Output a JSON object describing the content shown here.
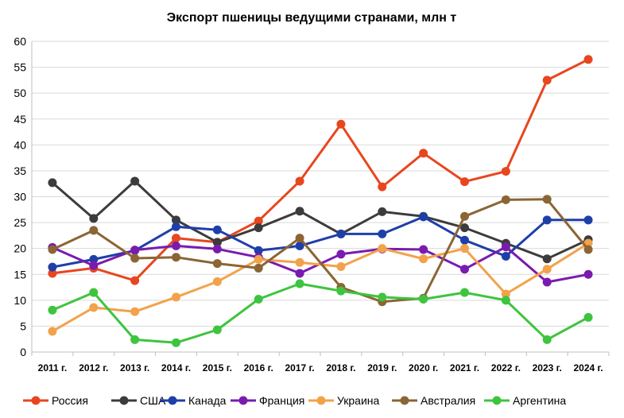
{
  "chart_data": {
    "type": "line",
    "title": "Экспорт пшеницы ведущими странами, млн т",
    "xlabel": "",
    "ylabel": "",
    "ylim": [
      0,
      60
    ],
    "yticks": [
      0,
      5,
      10,
      15,
      20,
      25,
      30,
      35,
      40,
      45,
      50,
      55,
      60
    ],
    "grid": true,
    "legend_position": "bottom",
    "categories": [
      "2011 г.",
      "2012 г.",
      "2013 г.",
      "2014 г.",
      "2015 г.",
      "2016 г.",
      "2017 г.",
      "2018 г.",
      "2019 г.",
      "2020 г.",
      "2021 г.",
      "2022 г.",
      "2023 г.",
      "2024 г."
    ],
    "series": [
      {
        "name": "Россия",
        "color": "#E8461E",
        "values": [
          15.2,
          16.2,
          13.8,
          22.0,
          21.2,
          25.3,
          33.0,
          44.0,
          31.9,
          38.4,
          32.9,
          34.9,
          52.5,
          56.5
        ]
      },
      {
        "name": "США",
        "color": "#3C3C3C",
        "values": [
          32.7,
          25.8,
          33.0,
          25.5,
          21.2,
          24.0,
          27.2,
          22.8,
          27.1,
          26.2,
          24.0,
          21.0,
          18.0,
          21.7
        ]
      },
      {
        "name": "Канада",
        "color": "#1F3FA8",
        "values": [
          16.4,
          17.9,
          19.6,
          24.2,
          23.6,
          19.6,
          20.5,
          22.8,
          22.8,
          26.1,
          21.6,
          18.5,
          25.5,
          25.5
        ]
      },
      {
        "name": "Франция",
        "color": "#7A1BAF",
        "values": [
          20.2,
          16.7,
          19.7,
          20.5,
          19.9,
          18.3,
          15.2,
          18.9,
          19.9,
          19.8,
          16.0,
          20.3,
          13.5,
          15.0
        ]
      },
      {
        "name": "Украина",
        "color": "#F2A24A",
        "values": [
          4.0,
          8.6,
          7.8,
          10.6,
          13.6,
          17.9,
          17.3,
          16.5,
          20.0,
          18.0,
          20.0,
          11.2,
          16.0,
          21.0
        ]
      },
      {
        "name": "Австралия",
        "color": "#8B6534",
        "values": [
          19.8,
          23.5,
          18.1,
          18.3,
          17.1,
          16.2,
          22.0,
          12.5,
          9.7,
          10.4,
          26.2,
          29.4,
          29.5,
          19.8
        ]
      },
      {
        "name": "Аргентина",
        "color": "#3EC43E",
        "values": [
          8.1,
          11.5,
          2.4,
          1.8,
          4.3,
          10.2,
          13.2,
          11.8,
          10.6,
          10.2,
          11.5,
          10.0,
          2.4,
          6.7
        ]
      }
    ]
  }
}
